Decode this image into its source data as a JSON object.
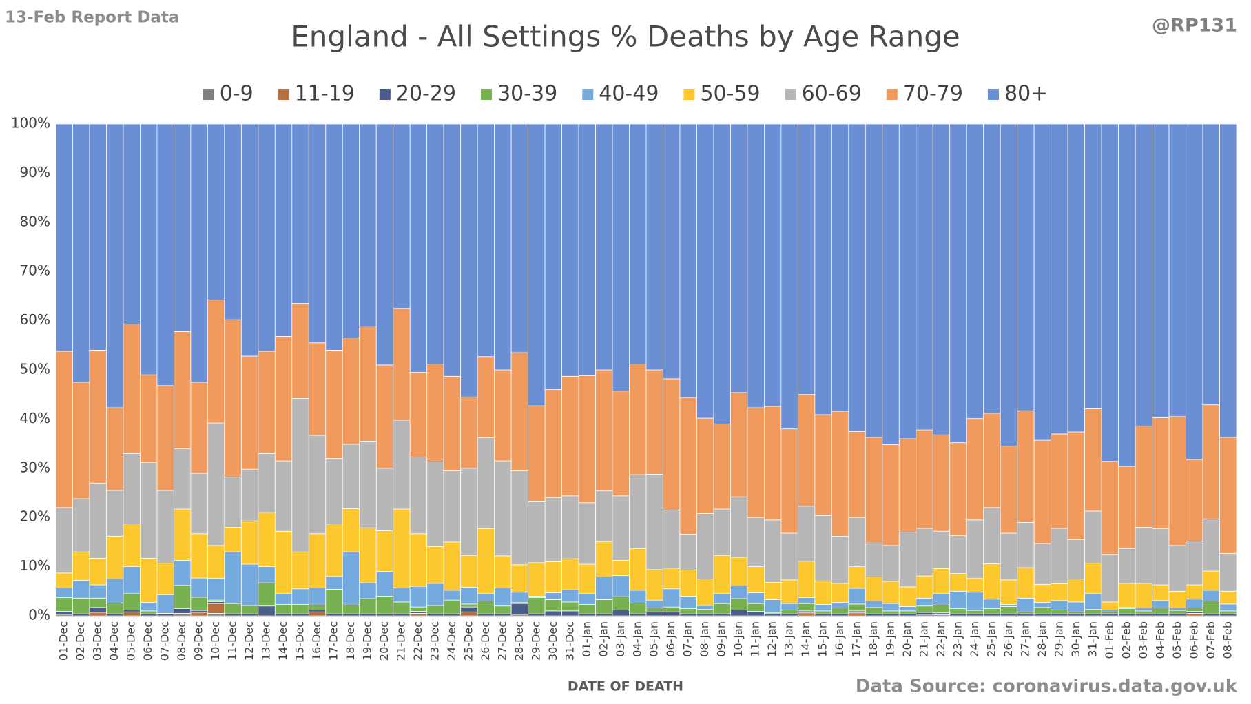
{
  "chart_data": {
    "type": "stacked_bar_100",
    "title": "England - All Settings % Deaths by Age Range",
    "subtitle": "13-Feb Report Data",
    "author": "@RP131",
    "source": "Data Source: coronavirus.data.gov.uk",
    "x_label": "DATE OF DEATH",
    "ylim": [
      0,
      100
    ],
    "yticks": [
      {
        "value": 0,
        "label": "0%"
      },
      {
        "value": 10,
        "label": "10%"
      },
      {
        "value": 20,
        "label": "20%"
      },
      {
        "value": 30,
        "label": "30%"
      },
      {
        "value": 40,
        "label": "40%"
      },
      {
        "value": 50,
        "label": "50%"
      },
      {
        "value": 60,
        "label": "60%"
      },
      {
        "value": 70,
        "label": "70%"
      },
      {
        "value": 80,
        "label": "80%"
      },
      {
        "value": 90,
        "label": "90%"
      },
      {
        "value": 100,
        "label": "100%"
      }
    ],
    "grid": true,
    "legend": "top",
    "categories": [
      "01-Dec",
      "02-Dec",
      "03-Dec",
      "04-Dec",
      "05-Dec",
      "06-Dec",
      "07-Dec",
      "08-Dec",
      "09-Dec",
      "10-Dec",
      "11-Dec",
      "12-Dec",
      "13-Dec",
      "14-Dec",
      "15-Dec",
      "16-Dec",
      "17-Dec",
      "18-Dec",
      "19-Dec",
      "20-Dec",
      "21-Dec",
      "22-Dec",
      "23-Dec",
      "24-Dec",
      "25-Dec",
      "26-Dec",
      "27-Dec",
      "28-Dec",
      "29-Dec",
      "30-Dec",
      "31-Dec",
      "01-Jan",
      "02-Jan",
      "03-Jan",
      "04-Jan",
      "05-Jan",
      "06-Jan",
      "07-Jan",
      "08-Jan",
      "09-Jan",
      "10-Jan",
      "11-Jan",
      "12-Jan",
      "13-Jan",
      "14-Jan",
      "15-Jan",
      "16-Jan",
      "17-Jan",
      "18-Jan",
      "19-Jan",
      "20-Jan",
      "21-Jan",
      "22-Jan",
      "23-Jan",
      "24-Jan",
      "25-Jan",
      "26-Jan",
      "27-Jan",
      "28-Jan",
      "29-Jan",
      "30-Jan",
      "31-Jan",
      "01-Feb",
      "02-Feb",
      "03-Feb",
      "04-Feb",
      "05-Feb",
      "06-Feb",
      "07-Feb",
      "08-Feb"
    ],
    "series": [
      {
        "name": "0-9",
        "color": "#808080",
        "values": [
          0.3,
          0,
          0,
          0,
          0,
          0,
          0,
          0.5,
          0,
          0.5,
          0,
          0,
          0,
          0,
          0,
          0,
          0,
          0,
          0,
          0,
          0,
          0,
          0,
          0,
          0,
          0,
          0,
          0.3,
          0,
          0,
          0,
          0,
          0,
          0,
          0,
          0,
          0,
          0,
          0,
          0,
          0,
          0,
          0,
          0,
          0,
          0,
          0,
          0,
          0,
          0,
          0,
          0.3,
          0.2,
          0,
          0,
          0,
          0,
          0,
          0,
          0,
          0,
          0,
          0,
          0,
          0,
          0,
          0,
          0,
          0,
          0
        ]
      },
      {
        "name": "11-19",
        "color": "#b8703f",
        "values": [
          0,
          0,
          0.7,
          0,
          0.8,
          0,
          0,
          0,
          0.7,
          2,
          0,
          0,
          0,
          0,
          0,
          0.8,
          0,
          0,
          0,
          0,
          0,
          0.5,
          0,
          0,
          0.8,
          0,
          0,
          0,
          0,
          0,
          0,
          0,
          0,
          0,
          0,
          0,
          0,
          0,
          0,
          0,
          0,
          0,
          0,
          0,
          0.6,
          0,
          0,
          0.6,
          0,
          0,
          0,
          0,
          0,
          0,
          0,
          0,
          0,
          0,
          0,
          0,
          0,
          0,
          0,
          0,
          0,
          0,
          0,
          0.5,
          0,
          0
        ]
      },
      {
        "name": "20-29",
        "color": "#4a5e8c",
        "values": [
          0.6,
          0.4,
          1,
          0.4,
          0.4,
          0.4,
          0.4,
          1,
          0.4,
          0.4,
          0.4,
          0.4,
          2,
          0.4,
          0.4,
          0.4,
          0.4,
          0.4,
          0.4,
          0.4,
          0.4,
          0.4,
          0.4,
          0.4,
          1,
          0.4,
          0.4,
          2.2,
          0.4,
          1,
          1,
          0.4,
          0.4,
          1.2,
          0.4,
          0.8,
          0.8,
          0.4,
          0.4,
          0.4,
          1.2,
          0.9,
          0.4,
          0.4,
          0.4,
          0.4,
          0.4,
          0.4,
          0.4,
          0.4,
          0.4,
          0.4,
          0.4,
          0.4,
          0.4,
          0.4,
          0.4,
          0.4,
          0.4,
          0.4,
          0.4,
          0.4,
          0.4,
          0.4,
          0.4,
          0.4,
          0.4,
          0.4,
          0.4,
          0.4
        ]
      },
      {
        "name": "30-39",
        "color": "#78b150",
        "values": [
          2.8,
          3.2,
          1.9,
          2.2,
          3.3,
          0.6,
          0.1,
          4.7,
          2.7,
          0.3,
          2.1,
          1.7,
          4.7,
          1.9,
          1.9,
          1.0,
          5.0,
          1.8,
          3.1,
          3.6,
          2.4,
          0.9,
          1.7,
          2.8,
          0.6,
          2.6,
          1.6,
          0.2,
          3.3,
          2.3,
          1.8,
          1.9,
          2.9,
          2.7,
          2.2,
          0.8,
          1.0,
          1.1,
          0.9,
          2.1,
          2.3,
          1.6,
          0.2,
          0.8,
          1.5,
          0.6,
          1.2,
          1.4,
          1.3,
          0.6,
          0.6,
          1.3,
          1.6,
          1.1,
          0.7,
          1.1,
          1.5,
          0.4,
          1.3,
          0.8,
          0.4,
          0.9,
          0.4,
          1.1,
          0.6,
          1.2,
          0.7,
          0.7,
          2.6,
          0.6
        ]
      },
      {
        "name": "40-49",
        "color": "#75aade",
        "values": [
          2.0,
          3.6,
          2.7,
          4.9,
          5.5,
          1.7,
          3.8,
          5.1,
          3.9,
          4.4,
          10.5,
          8.4,
          3.3,
          2.2,
          3.2,
          3.5,
          2.6,
          10.8,
          3.2,
          5,
          2.9,
          4.2,
          4.5,
          2.0,
          3.4,
          1.5,
          3.7,
          2.1,
          0.3,
          1.4,
          2.5,
          2.2,
          4.6,
          4.3,
          2.6,
          1.6,
          3.7,
          2.5,
          0.8,
          2.0,
          2.6,
          2.2,
          2.7,
          1.3,
          1.2,
          1.3,
          1.1,
          3.2,
          1.3,
          1.5,
          0.9,
          1.6,
          2.3,
          3.5,
          3.7,
          1.9,
          0.4,
          2.8,
          1.0,
          1.9,
          2.0,
          3.2,
          0.4,
          0.2,
          0.6,
          1.5,
          0.5,
          1.8,
          2.2,
          1.4
        ]
      },
      {
        "name": "50-59",
        "color": "#fdc72e",
        "values": [
          3.0,
          5.8,
          5.4,
          8.7,
          8.7,
          9.0,
          6.4,
          10.4,
          9.0,
          6.7,
          5.0,
          8.8,
          11.0,
          12.7,
          7.5,
          11.0,
          10.7,
          8.8,
          11.2,
          8.3,
          16.0,
          10.7,
          7.5,
          9.8,
          6.5,
          13.2,
          6.5,
          5.6,
          6.8,
          6.3,
          6.3,
          6.0,
          7.2,
          3.1,
          8.5,
          6.2,
          4.2,
          5.3,
          5.4,
          7.8,
          5.8,
          5.3,
          3.5,
          4.8,
          7.4,
          4.8,
          3.9,
          4.4,
          4.9,
          4.5,
          4.0,
          4.5,
          5.1,
          3.6,
          2.8,
          7.2,
          5.0,
          6.2,
          3.7,
          3.4,
          4.7,
          6.2,
          1.6,
          4.9,
          5.0,
          3.2,
          3.4,
          2.9,
          3.9,
          2.6
        ]
      },
      {
        "name": "60-69",
        "color": "#b7b7b7",
        "values": [
          13.3,
          10.8,
          15.3,
          9.3,
          14.3,
          19.5,
          14.8,
          12.3,
          12.3,
          24.9,
          10.2,
          10.5,
          12.0,
          14.3,
          31.2,
          20.0,
          13.3,
          13.1,
          17.6,
          12.7,
          18.1,
          15.6,
          17.2,
          14.5,
          17.7,
          18.5,
          19.3,
          19.1,
          12.4,
          13.0,
          12.8,
          12.5,
          10.3,
          13.1,
          15.0,
          19.4,
          11.8,
          7.3,
          13.3,
          9.4,
          12.3,
          10.0,
          12.7,
          9.5,
          11.2,
          13.3,
          9.6,
          10.0,
          6.9,
          7.3,
          11.1,
          9.7,
          7.6,
          7.7,
          11.9,
          11.4,
          9.5,
          9.2,
          8.3,
          11.3,
          8.0,
          10.6,
          9.7,
          7.1,
          11.4,
          11.4,
          9.3,
          8.9,
          10.6,
          7.7
        ]
      },
      {
        "name": "70-79",
        "color": "#f19a5e",
        "values": [
          31.8,
          23.7,
          27.0,
          16.8,
          26.3,
          17.8,
          21.3,
          23.8,
          18.5,
          25.0,
          32.0,
          23.0,
          20.8,
          25.3,
          19.3,
          18.8,
          22.0,
          21.6,
          23.3,
          21.0,
          22.7,
          17.2,
          19.9,
          19.2,
          14.5,
          16.5,
          18.5,
          24.0,
          19.5,
          22.0,
          24.3,
          25.8,
          24.6,
          21.3,
          22.5,
          21.2,
          26.7,
          27.8,
          19.4,
          17.3,
          21.2,
          22.3,
          23.1,
          21.2,
          22.7,
          20.5,
          25.4,
          17.5,
          21.5,
          20.5,
          19.0,
          20.0,
          19.6,
          18.9,
          20.6,
          19.2,
          17.7,
          22.7,
          21.0,
          19.2,
          21.9,
          20.8,
          18.9,
          16.7,
          20.6,
          22.6,
          26.2,
          16.6,
          23.2,
          23.6
        ]
      },
      {
        "name": "80+",
        "color": "#6b8fd4",
        "values": [
          46.2,
          52.5,
          46,
          57.7,
          40.7,
          51,
          53.2,
          42.2,
          52.5,
          35.8,
          39.8,
          47.2,
          46.2,
          43.2,
          36.5,
          44.5,
          46,
          43.5,
          41.2,
          49,
          37.5,
          50.5,
          48.8,
          51.3,
          55.5,
          47.3,
          50,
          46.5,
          57.3,
          54,
          51.3,
          51.2,
          50,
          54.3,
          48.8,
          50,
          51.8,
          55.6,
          59.8,
          61,
          54.6,
          57.7,
          57.4,
          62,
          55,
          59.1,
          58.4,
          62.5,
          63.7,
          65.2,
          64,
          62.2,
          63.2,
          64.8,
          59.9,
          58.8,
          65.5,
          58.3,
          64.3,
          63,
          62.6,
          57.9,
          68.6,
          69.6,
          61.4,
          59.7,
          59.5,
          68.2,
          57.1,
          63.7
        ]
      }
    ]
  }
}
